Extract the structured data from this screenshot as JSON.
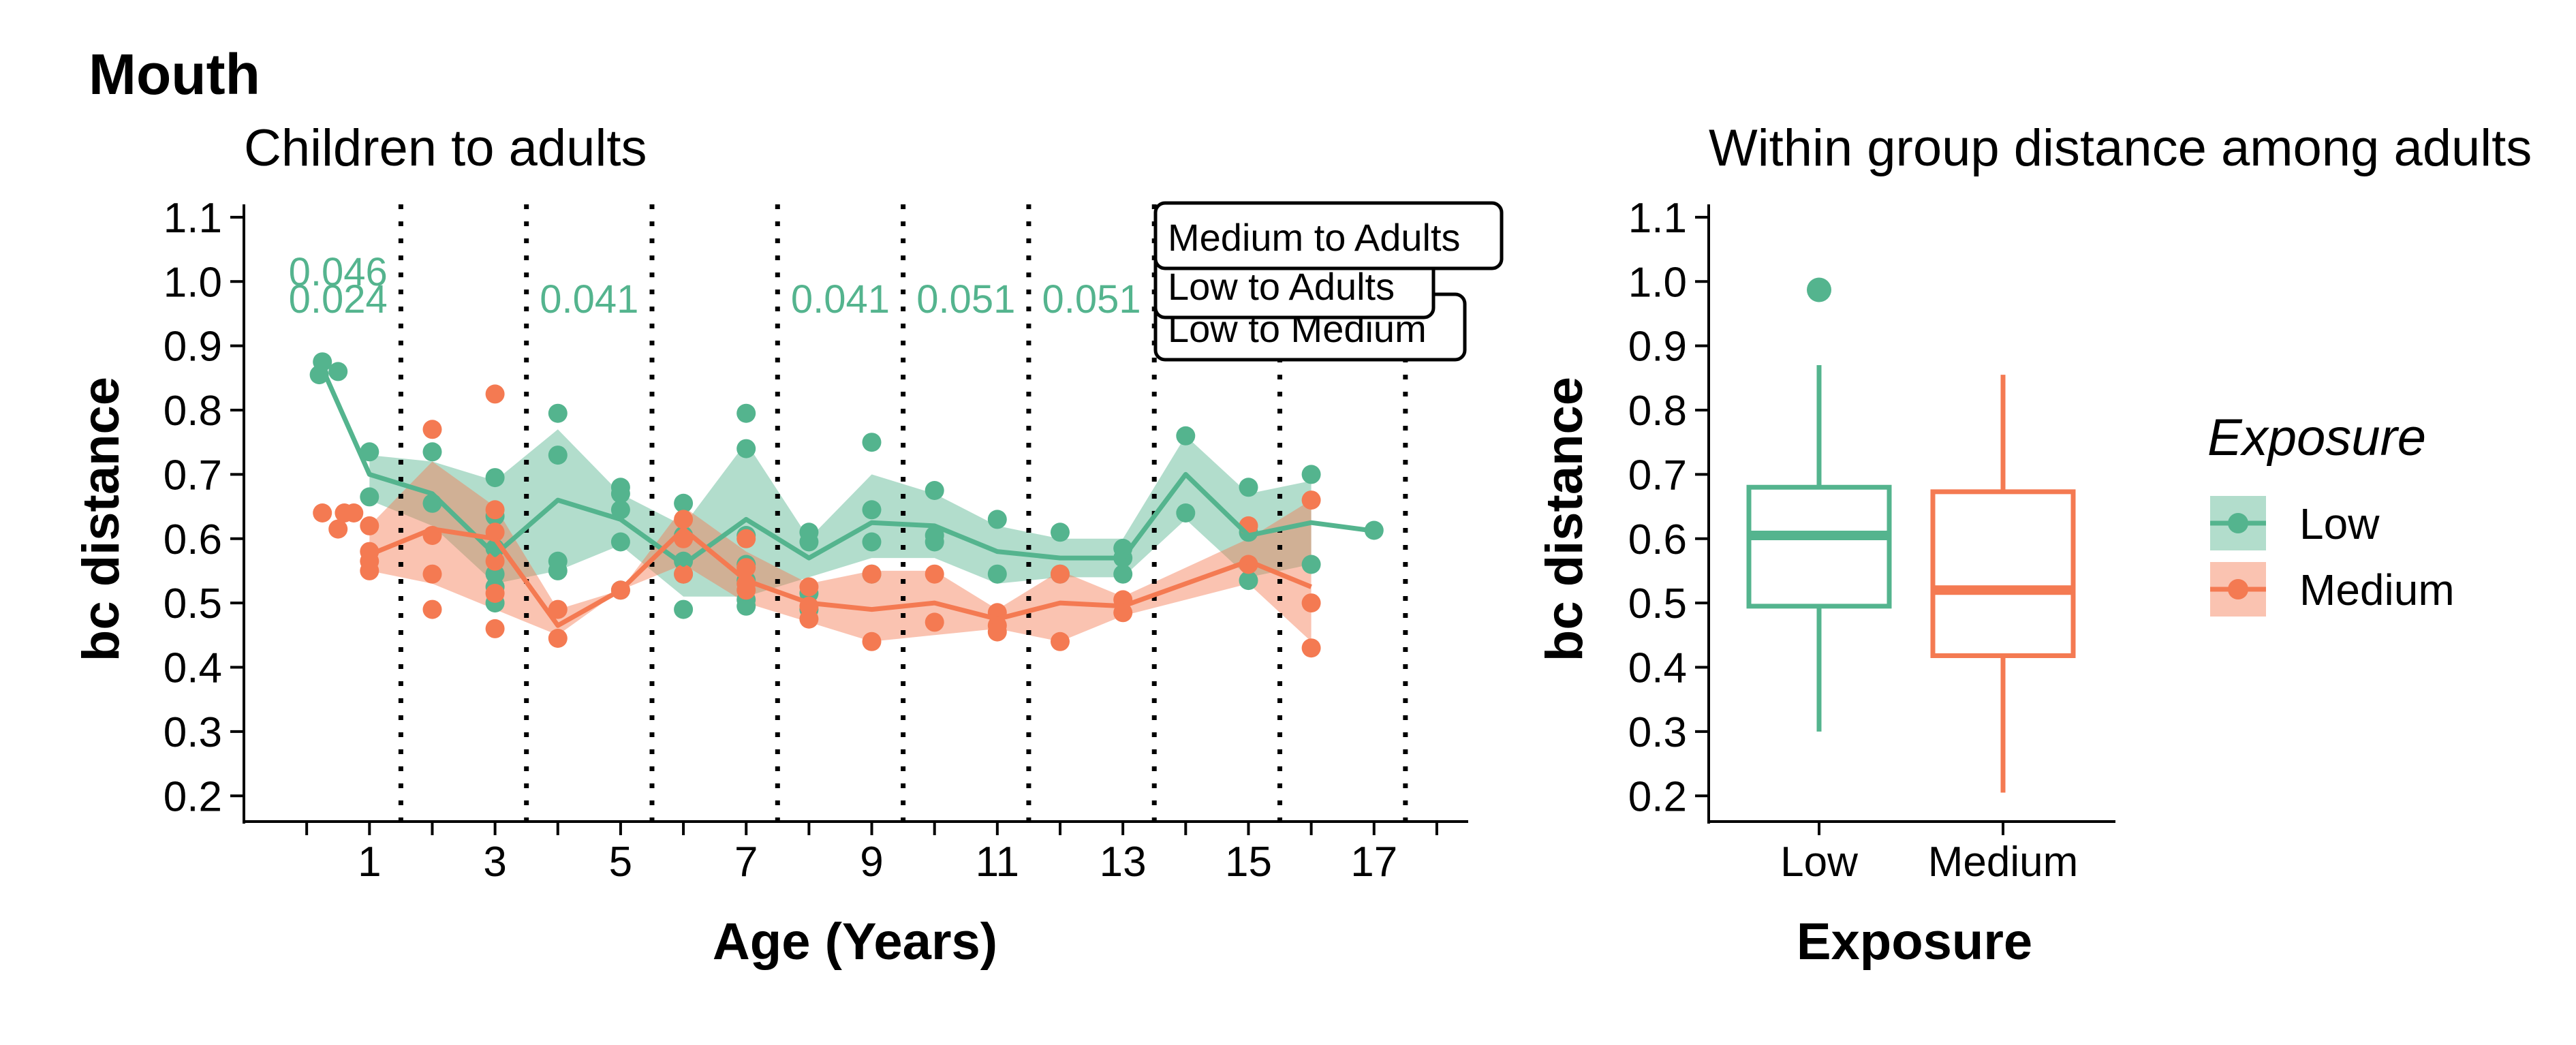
{
  "figure": {
    "main_title": "Mouth",
    "colors": {
      "Low": "#54b48e",
      "Medium": "#f47a52",
      "axis": "#000000"
    }
  },
  "chart_data": [
    {
      "type": "line",
      "title": "Children to adults",
      "xlabel": "Age (Years)",
      "ylabel": "bc distance",
      "xlim": [
        -1,
        18.5
      ],
      "ylim": [
        0.16,
        1.12
      ],
      "x_ticks": [
        0,
        1,
        2,
        3,
        4,
        5,
        6,
        7,
        8,
        9,
        10,
        11,
        12,
        13,
        14,
        15,
        16,
        17,
        18
      ],
      "x_tick_labels": [
        "1",
        "3",
        "5",
        "7",
        "9",
        "11",
        "13",
        "15",
        "17"
      ],
      "x_tick_label_values": [
        1,
        3,
        5,
        7,
        9,
        11,
        13,
        15,
        17
      ],
      "y_ticks": [
        0.2,
        0.3,
        0.4,
        0.5,
        0.6,
        0.7,
        0.8,
        0.9,
        1.0,
        1.1
      ],
      "y_tick_labels": [
        "0.2",
        "0.3",
        "0.4",
        "0.5",
        "0.6",
        "0.7",
        "0.8",
        "0.9",
        "1.0",
        "1.1"
      ],
      "grid": false,
      "vlines": [
        1.5,
        3.5,
        5.5,
        7.5,
        9.5,
        11.5,
        13.5,
        15.5,
        17.5
      ],
      "series": [
        {
          "name": "Low",
          "line": [
            [
              0.25,
              0.865
            ],
            [
              1,
              0.7
            ],
            [
              2,
              0.67
            ],
            [
              3,
              0.575
            ],
            [
              4,
              0.66
            ],
            [
              5,
              0.63
            ],
            [
              6,
              0.56
            ],
            [
              7,
              0.63
            ],
            [
              8,
              0.57
            ],
            [
              9,
              0.625
            ],
            [
              10,
              0.62
            ],
            [
              11,
              0.58
            ],
            [
              12,
              0.57
            ],
            [
              13,
              0.57
            ],
            [
              14,
              0.7
            ],
            [
              15,
              0.605
            ],
            [
              16,
              0.625
            ],
            [
              17,
              0.612
            ]
          ],
          "ribbon": [
            [
              1,
              0.66,
              0.73
            ],
            [
              2,
              0.62,
              0.72
            ],
            [
              3,
              0.53,
              0.69
            ],
            [
              4,
              0.55,
              0.77
            ],
            [
              5,
              0.59,
              0.67
            ],
            [
              6,
              0.51,
              0.62
            ],
            [
              7,
              0.51,
              0.75
            ],
            [
              8,
              0.54,
              0.6
            ],
            [
              9,
              0.57,
              0.7
            ],
            [
              10,
              0.57,
              0.67
            ],
            [
              11,
              0.53,
              0.62
            ],
            [
              12,
              0.54,
              0.6
            ],
            [
              13,
              0.54,
              0.6
            ],
            [
              14,
              0.63,
              0.76
            ],
            [
              15,
              0.54,
              0.67
            ],
            [
              16,
              0.56,
              0.69
            ]
          ],
          "points": [
            [
              0.2,
              0.855
            ],
            [
              0.25,
              0.875
            ],
            [
              0.5,
              0.86
            ],
            [
              1,
              0.735
            ],
            [
              1,
              0.665
            ],
            [
              2,
              0.735
            ],
            [
              2,
              0.655
            ],
            [
              3,
              0.695
            ],
            [
              3,
              0.635
            ],
            [
              3,
              0.585
            ],
            [
              3,
              0.545
            ],
            [
              3,
              0.525
            ],
            [
              3,
              0.5
            ],
            [
              4,
              0.795
            ],
            [
              4,
              0.73
            ],
            [
              4,
              0.565
            ],
            [
              4,
              0.55
            ],
            [
              5,
              0.68
            ],
            [
              5,
              0.67
            ],
            [
              5,
              0.645
            ],
            [
              5,
              0.595
            ],
            [
              5,
              0.52
            ],
            [
              6,
              0.655
            ],
            [
              6,
              0.605
            ],
            [
              6,
              0.565
            ],
            [
              6,
              0.545
            ],
            [
              6,
              0.49
            ],
            [
              7,
              0.795
            ],
            [
              7,
              0.74
            ],
            [
              7,
              0.605
            ],
            [
              7,
              0.56
            ],
            [
              7,
              0.535
            ],
            [
              7,
              0.505
            ],
            [
              7,
              0.495
            ],
            [
              8,
              0.61
            ],
            [
              8,
              0.595
            ],
            [
              8,
              0.515
            ],
            [
              8,
              0.49
            ],
            [
              9,
              0.75
            ],
            [
              9,
              0.645
            ],
            [
              9,
              0.595
            ],
            [
              9,
              0.545
            ],
            [
              10,
              0.675
            ],
            [
              10,
              0.605
            ],
            [
              10,
              0.595
            ],
            [
              11,
              0.63
            ],
            [
              11,
              0.545
            ],
            [
              12,
              0.61
            ],
            [
              12,
              0.545
            ],
            [
              13,
              0.585
            ],
            [
              13,
              0.57
            ],
            [
              13,
              0.545
            ],
            [
              14,
              0.76
            ],
            [
              14,
              0.64
            ],
            [
              15,
              0.68
            ],
            [
              15,
              0.61
            ],
            [
              15,
              0.535
            ],
            [
              16,
              0.7
            ],
            [
              16,
              0.56
            ],
            [
              17,
              0.613
            ]
          ]
        },
        {
          "name": "Medium",
          "line": [
            [
              1,
              0.575
            ],
            [
              2,
              0.615
            ],
            [
              3,
              0.6
            ],
            [
              4,
              0.465
            ],
            [
              5,
              0.52
            ],
            [
              6,
              0.615
            ],
            [
              7,
              0.535
            ],
            [
              8,
              0.5
            ],
            [
              9,
              0.49
            ],
            [
              10,
              0.5
            ],
            [
              11,
              0.475
            ],
            [
              12,
              0.5
            ],
            [
              13,
              0.495
            ],
            [
              15,
              0.565
            ],
            [
              16,
              0.525
            ]
          ],
          "ribbon": [
            [
              1,
              0.55,
              0.62
            ],
            [
              2,
              0.53,
              0.72
            ],
            [
              3,
              0.49,
              0.65
            ],
            [
              4,
              0.45,
              0.49
            ],
            [
              5,
              0.52,
              0.52
            ],
            [
              6,
              0.56,
              0.65
            ],
            [
              7,
              0.5,
              0.58
            ],
            [
              8,
              0.47,
              0.53
            ],
            [
              9,
              0.44,
              0.55
            ],
            [
              10,
              0.45,
              0.55
            ],
            [
              11,
              0.46,
              0.49
            ],
            [
              12,
              0.44,
              0.55
            ],
            [
              13,
              0.48,
              0.51
            ],
            [
              15,
              0.53,
              0.6
            ],
            [
              16,
              0.44,
              0.66
            ]
          ],
          "points": [
            [
              0.25,
              0.64
            ],
            [
              0.5,
              0.615
            ],
            [
              0.6,
              0.64
            ],
            [
              0.75,
              0.64
            ],
            [
              1,
              0.62
            ],
            [
              1,
              0.58
            ],
            [
              1,
              0.565
            ],
            [
              1,
              0.55
            ],
            [
              2,
              0.77
            ],
            [
              2,
              0.605
            ],
            [
              2,
              0.545
            ],
            [
              2,
              0.49
            ],
            [
              3,
              0.825
            ],
            [
              3,
              0.645
            ],
            [
              3,
              0.61
            ],
            [
              3,
              0.565
            ],
            [
              3,
              0.515
            ],
            [
              3,
              0.46
            ],
            [
              4,
              0.49
            ],
            [
              4,
              0.445
            ],
            [
              5,
              0.52
            ],
            [
              6,
              0.63
            ],
            [
              6,
              0.6
            ],
            [
              6,
              0.545
            ],
            [
              7,
              0.6
            ],
            [
              7,
              0.555
            ],
            [
              7,
              0.53
            ],
            [
              7,
              0.52
            ],
            [
              8,
              0.525
            ],
            [
              8,
              0.495
            ],
            [
              8,
              0.475
            ],
            [
              9,
              0.545
            ],
            [
              9,
              0.44
            ],
            [
              10,
              0.545
            ],
            [
              10,
              0.47
            ],
            [
              11,
              0.485
            ],
            [
              11,
              0.465
            ],
            [
              11,
              0.455
            ],
            [
              12,
              0.545
            ],
            [
              12,
              0.44
            ],
            [
              13,
              0.505
            ],
            [
              13,
              0.485
            ],
            [
              15,
              0.62
            ],
            [
              15,
              0.56
            ],
            [
              16,
              0.66
            ],
            [
              16,
              0.5
            ],
            [
              16,
              0.43
            ]
          ]
        }
      ],
      "annotations": [
        {
          "text": "0.046",
          "x": 0.5,
          "y": 1.017,
          "series": "Low"
        },
        {
          "text": "0.024",
          "x": 0.5,
          "y": 0.975,
          "series": "Low"
        },
        {
          "text": "0.041",
          "x": 4.5,
          "y": 0.975,
          "series": "Low"
        },
        {
          "text": "0.041",
          "x": 8.5,
          "y": 0.975,
          "series": "Low"
        },
        {
          "text": "0.051",
          "x": 10.5,
          "y": 0.975,
          "series": "Low"
        },
        {
          "text": "0.051",
          "x": 12.5,
          "y": 0.975,
          "series": "Low"
        }
      ],
      "label_boxes": [
        {
          "text": "Low to Medium",
          "order": 3
        },
        {
          "text": "Low to Adults",
          "order": 2
        },
        {
          "text": "Medium to Adults",
          "order": 1
        }
      ]
    },
    {
      "type": "box",
      "title": "Within group distance among adults",
      "xlabel": "Exposure",
      "ylabel": "bc distance",
      "ylim": [
        0.16,
        1.12
      ],
      "y_ticks": [
        0.2,
        0.3,
        0.4,
        0.5,
        0.6,
        0.7,
        0.8,
        0.9,
        1.0,
        1.1
      ],
      "y_tick_labels": [
        "0.2",
        "0.3",
        "0.4",
        "0.5",
        "0.6",
        "0.7",
        "0.8",
        "0.9",
        "1.0",
        "1.1"
      ],
      "categories": [
        "Low",
        "Medium"
      ],
      "boxes": [
        {
          "name": "Low",
          "min": 0.3,
          "q1": 0.495,
          "median": 0.605,
          "q3": 0.68,
          "max": 0.87,
          "outliers": [
            0.987
          ]
        },
        {
          "name": "Medium",
          "min": 0.205,
          "q1": 0.418,
          "median": 0.52,
          "q3": 0.673,
          "max": 0.855,
          "outliers": []
        }
      ]
    }
  ],
  "legend": {
    "title": "Exposure",
    "entries": [
      "Low",
      "Medium"
    ],
    "placement": "right"
  }
}
